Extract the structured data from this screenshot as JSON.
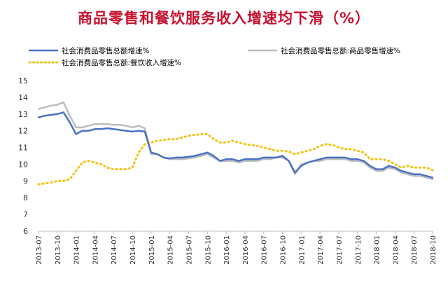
{
  "chart_data": {
    "type": "line",
    "title": "商品零售和餐饮服务收入增速均下滑（%）",
    "ylim": [
      6,
      15
    ],
    "yticks": [
      6,
      7,
      8,
      9,
      10,
      11,
      12,
      13,
      14,
      15
    ],
    "grid": false,
    "legend": "top",
    "x": [
      "2013-07",
      "2013-08",
      "2013-09",
      "2013-10",
      "2013-11",
      "2013-12",
      "2014-01",
      "2014-02",
      "2014-03",
      "2014-04",
      "2014-05",
      "2014-06",
      "2014-07",
      "2014-08",
      "2014-09",
      "2014-10",
      "2014-11",
      "2014-12",
      "2015-01",
      "2015-02",
      "2015-03",
      "2015-04",
      "2015-05",
      "2015-06",
      "2015-07",
      "2015-08",
      "2015-09",
      "2015-10",
      "2015-11",
      "2015-12",
      "2016-01",
      "2016-02",
      "2016-03",
      "2016-04",
      "2016-05",
      "2016-06",
      "2016-07",
      "2016-08",
      "2016-09",
      "2016-10",
      "2016-11",
      "2016-12",
      "2017-01",
      "2017-02",
      "2017-03",
      "2017-04",
      "2017-05",
      "2017-06",
      "2017-07",
      "2017-08",
      "2017-09",
      "2017-10",
      "2017-11",
      "2017-12",
      "2018-01",
      "2018-02",
      "2018-03",
      "2018-04",
      "2018-05",
      "2018-06",
      "2018-07",
      "2018-08",
      "2018-09",
      "2018-10"
    ],
    "xticks": [
      "2013-07",
      "2013-10",
      "2014-01",
      "2014-04",
      "2014-07",
      "2014-10",
      "2015-01",
      "2015-04",
      "2015-07",
      "2015-10",
      "2016-01",
      "2016-04",
      "2016-07",
      "2016-10",
      "2017-01",
      "2017-04",
      "2017-07",
      "2017-10",
      "2018-01",
      "2018-04",
      "2018-07",
      "2018-10"
    ],
    "series": [
      {
        "name": "社会消费品零售总额增速%",
        "color": "#4a72c4",
        "style": "solid",
        "values": [
          12.8,
          12.9,
          12.95,
          13.0,
          13.1,
          12.5,
          11.8,
          12.0,
          12.0,
          12.1,
          12.1,
          12.15,
          12.1,
          12.05,
          12.0,
          11.95,
          12.0,
          11.95,
          10.7,
          10.6,
          10.4,
          10.35,
          10.4,
          10.4,
          10.45,
          10.5,
          10.6,
          10.7,
          10.5,
          10.2,
          10.3,
          10.3,
          10.2,
          10.3,
          10.3,
          10.3,
          10.4,
          10.4,
          10.4,
          10.5,
          10.2,
          9.5,
          9.9,
          10.1,
          10.2,
          10.3,
          10.4,
          10.4,
          10.4,
          10.4,
          10.3,
          10.3,
          10.2,
          9.9,
          9.7,
          9.7,
          9.9,
          9.8,
          9.6,
          9.5,
          9.4,
          9.4,
          9.3,
          9.2
        ]
      },
      {
        "name": "社会消费品零售总额:商品零售增速%",
        "color": "#bdbdbd",
        "style": "solid",
        "values": [
          13.3,
          13.4,
          13.5,
          13.55,
          13.7,
          12.9,
          12.2,
          12.2,
          12.3,
          12.4,
          12.4,
          12.4,
          12.35,
          12.35,
          12.3,
          12.2,
          12.3,
          12.15,
          10.6,
          10.6,
          10.4,
          10.3,
          10.3,
          10.3,
          10.35,
          10.4,
          10.5,
          10.6,
          10.4,
          10.2,
          10.2,
          10.2,
          10.1,
          10.2,
          10.2,
          10.2,
          10.3,
          10.3,
          10.4,
          10.4,
          10.2,
          9.4,
          10.0,
          10.1,
          10.2,
          10.2,
          10.3,
          10.3,
          10.3,
          10.3,
          10.2,
          10.2,
          10.1,
          9.8,
          9.6,
          9.6,
          9.8,
          9.7,
          9.5,
          9.4,
          9.3,
          9.3,
          9.2,
          9.1
        ]
      },
      {
        "name": "社会消费品零售总额:餐饮收入增速%",
        "color": "#f0c419",
        "style": "dotted",
        "values": [
          8.8,
          8.85,
          8.9,
          9.0,
          9.0,
          9.1,
          9.6,
          10.1,
          10.2,
          10.1,
          10.0,
          9.8,
          9.7,
          9.7,
          9.7,
          9.8,
          10.7,
          11.2,
          11.3,
          11.4,
          11.45,
          11.5,
          11.5,
          11.6,
          11.7,
          11.75,
          11.8,
          11.8,
          11.5,
          11.3,
          11.3,
          11.4,
          11.3,
          11.2,
          11.15,
          11.1,
          11.0,
          10.9,
          10.8,
          10.8,
          10.75,
          10.6,
          10.7,
          10.8,
          10.9,
          11.1,
          11.2,
          11.15,
          11.0,
          10.9,
          10.9,
          10.8,
          10.7,
          10.3,
          10.3,
          10.3,
          10.2,
          10.0,
          9.8,
          9.9,
          9.8,
          9.8,
          9.8,
          9.65
        ]
      }
    ]
  }
}
